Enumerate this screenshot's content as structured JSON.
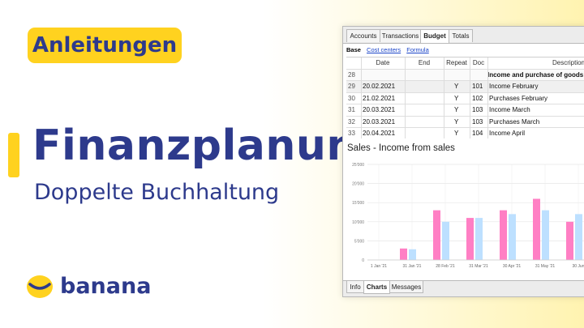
{
  "badge": "Anleitungen",
  "title": "Finanzplanung",
  "subtitle": "Doppelte Buchhaltung",
  "logo": {
    "text": "banana",
    "icon": "banana-logo-icon",
    "color": "#ffd21f"
  },
  "colors": {
    "brand_blue": "#2d3a8c",
    "brand_yellow": "#ffd21f",
    "series_pink": "#ff7fc4",
    "series_blue": "#bde0ff"
  },
  "window": {
    "tabs": [
      "Accounts",
      "Transactions",
      "Budget",
      "Totals"
    ],
    "active_tab": "Budget",
    "subtabs": [
      "Base",
      "Cost centers",
      "Formula"
    ],
    "table": {
      "headers": [
        "",
        "Date",
        "End",
        "Repeat",
        "Doc",
        "Description"
      ],
      "rows": [
        [
          "28",
          "",
          "",
          "",
          "",
          "Income and purchase of goods"
        ],
        [
          "29",
          "20.02.2021",
          "",
          "Y",
          "101",
          "Income February"
        ],
        [
          "30",
          "21.02.2021",
          "",
          "Y",
          "102",
          "Purchases February"
        ],
        [
          "31",
          "20.03.2021",
          "",
          "Y",
          "103",
          "Income March"
        ],
        [
          "32",
          "20.03.2021",
          "",
          "Y",
          "103",
          "Purchases March"
        ],
        [
          "33",
          "20.04.2021",
          "",
          "Y",
          "104",
          "Income April"
        ]
      ]
    },
    "chart_title": "Sales - Income from sales",
    "bottom_tabs": [
      "Info",
      "Charts",
      "Messages"
    ],
    "active_bottom_tab": "Charts"
  },
  "chart_data": {
    "type": "bar",
    "title": "Sales - Income from sales",
    "categories": [
      "1 Jan '21",
      "31 Jan '21",
      "28 Feb '21",
      "31 Mar '21",
      "30 Apr '21",
      "31 May '21",
      "30 Jun"
    ],
    "series": [
      {
        "values": [
          0,
          3000,
          13000,
          11000,
          13000,
          16000,
          10000
        ]
      },
      {
        "values": [
          0,
          2800,
          10000,
          11000,
          12000,
          13000,
          12000
        ]
      }
    ],
    "y_ticks": [
      "0",
      "5'000",
      "10'000",
      "15'000",
      "20'000",
      "25'000"
    ],
    "ylim": [
      0,
      25000
    ],
    "grid": true
  }
}
